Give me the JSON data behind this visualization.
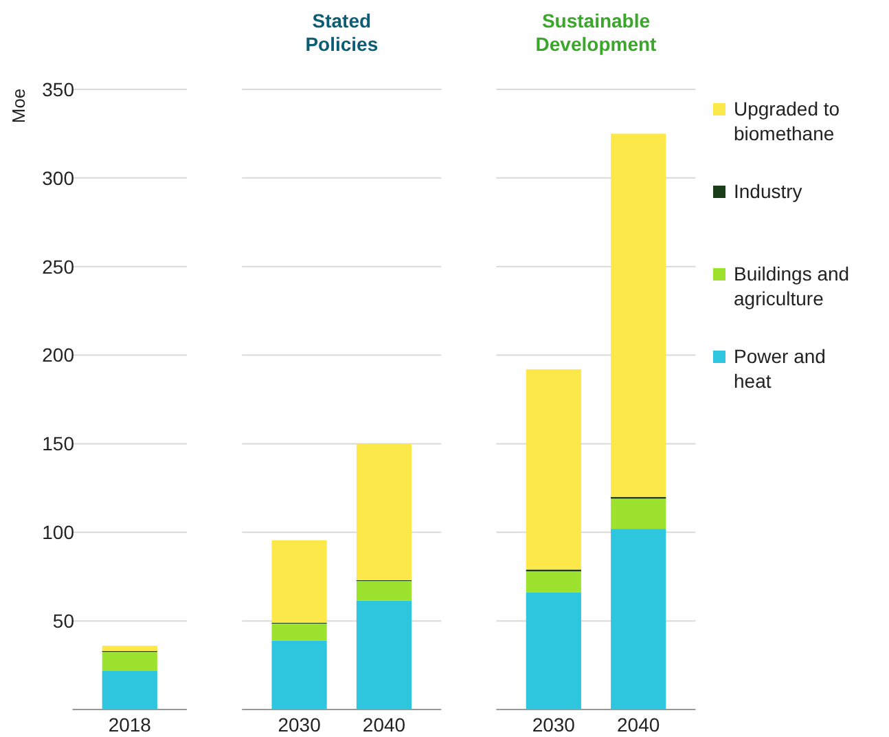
{
  "chart_data": {
    "type": "bar",
    "stacked": true,
    "ylabel": "Moe",
    "categories": [
      "2018",
      null,
      "2030",
      "2040",
      null,
      "2030",
      "2040"
    ],
    "annotations": [
      "Stated Policies",
      "Sustainable Development"
    ],
    "series": [
      {
        "name": "Power and heat",
        "color": "#2ec6df",
        "values": [
          22,
          null,
          39,
          61.5,
          null,
          66,
          102
        ]
      },
      {
        "name": "Buildings and agriculture",
        "color": "#9de22f",
        "values": [
          10.5,
          null,
          9.5,
          11,
          null,
          12,
          17
        ]
      },
      {
        "name": "Industry",
        "color": "#1a3d1a",
        "values": [
          0.5,
          null,
          0.5,
          0.5,
          null,
          1,
          1
        ]
      },
      {
        "name": "Upgraded to biomethane",
        "color": "#fde84a",
        "values": [
          3,
          null,
          46.5,
          77,
          null,
          113,
          205
        ]
      }
    ],
    "ylim": [
      0,
      350
    ],
    "yticks": [
      50,
      100,
      150,
      200,
      250,
      300,
      350
    ],
    "grid": "y",
    "legend": "right"
  }
}
